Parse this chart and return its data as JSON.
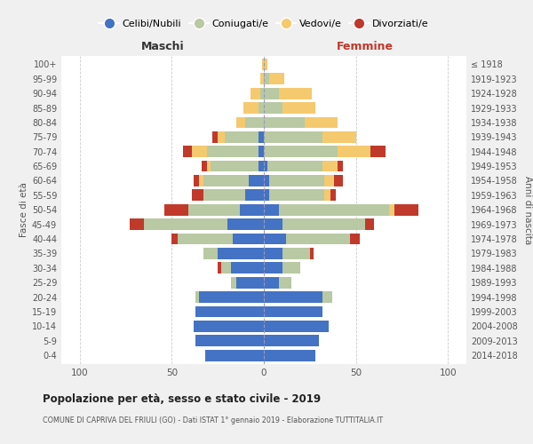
{
  "age_groups": [
    "0-4",
    "5-9",
    "10-14",
    "15-19",
    "20-24",
    "25-29",
    "30-34",
    "35-39",
    "40-44",
    "45-49",
    "50-54",
    "55-59",
    "60-64",
    "65-69",
    "70-74",
    "75-79",
    "80-84",
    "85-89",
    "90-94",
    "95-99",
    "100+"
  ],
  "birth_years": [
    "2014-2018",
    "2009-2013",
    "2004-2008",
    "1999-2003",
    "1994-1998",
    "1989-1993",
    "1984-1988",
    "1979-1983",
    "1974-1978",
    "1969-1973",
    "1964-1968",
    "1959-1963",
    "1954-1958",
    "1949-1953",
    "1944-1948",
    "1939-1943",
    "1934-1938",
    "1929-1933",
    "1924-1928",
    "1919-1923",
    "≤ 1918"
  ],
  "colors": {
    "celibi": "#4472c4",
    "coniugati": "#b8c9a3",
    "vedovi": "#f5c96e",
    "divorziati": "#c0392b"
  },
  "maschi": {
    "celibi": [
      32,
      37,
      38,
      37,
      35,
      15,
      18,
      25,
      17,
      20,
      13,
      10,
      8,
      3,
      3,
      3,
      0,
      0,
      0,
      0,
      0
    ],
    "coniugati": [
      0,
      0,
      0,
      0,
      2,
      3,
      5,
      8,
      30,
      45,
      28,
      23,
      25,
      26,
      28,
      18,
      10,
      3,
      2,
      0,
      0
    ],
    "vedovi": [
      0,
      0,
      0,
      0,
      0,
      0,
      0,
      0,
      0,
      0,
      0,
      0,
      2,
      2,
      8,
      4,
      5,
      8,
      5,
      2,
      1
    ],
    "divorziati": [
      0,
      0,
      0,
      0,
      0,
      0,
      2,
      0,
      3,
      8,
      13,
      6,
      3,
      3,
      5,
      3,
      0,
      0,
      0,
      0,
      0
    ]
  },
  "femmine": {
    "celibi": [
      28,
      30,
      35,
      32,
      32,
      8,
      10,
      10,
      12,
      10,
      8,
      3,
      3,
      2,
      0,
      0,
      0,
      0,
      0,
      0,
      0
    ],
    "coniugati": [
      0,
      0,
      0,
      0,
      5,
      7,
      10,
      15,
      35,
      45,
      60,
      30,
      30,
      30,
      40,
      32,
      22,
      10,
      8,
      3,
      0
    ],
    "vedovi": [
      0,
      0,
      0,
      0,
      0,
      0,
      0,
      0,
      0,
      0,
      3,
      3,
      5,
      8,
      18,
      18,
      18,
      18,
      18,
      8,
      2
    ],
    "divorziati": [
      0,
      0,
      0,
      0,
      0,
      0,
      0,
      2,
      5,
      5,
      13,
      3,
      5,
      3,
      8,
      0,
      0,
      0,
      0,
      0,
      0
    ]
  },
  "title": "Popolazione per età, sesso e stato civile - 2019",
  "subtitle": "COMUNE DI CAPRIVA DEL FRIULI (GO) - Dati ISTAT 1° gennaio 2019 - Elaborazione TUTTITALIA.IT",
  "xlabel_left": "Maschi",
  "xlabel_right": "Femmine",
  "ylabel_left": "Fasce di età",
  "ylabel_right": "Anni di nascita",
  "xlim": 110,
  "legend_labels": [
    "Celibi/Nubili",
    "Coniugati/e",
    "Vedovi/e",
    "Divorziati/e"
  ],
  "bg_color": "#f0f0f0",
  "plot_bg": "#ffffff",
  "grid_color": "#cccccc"
}
